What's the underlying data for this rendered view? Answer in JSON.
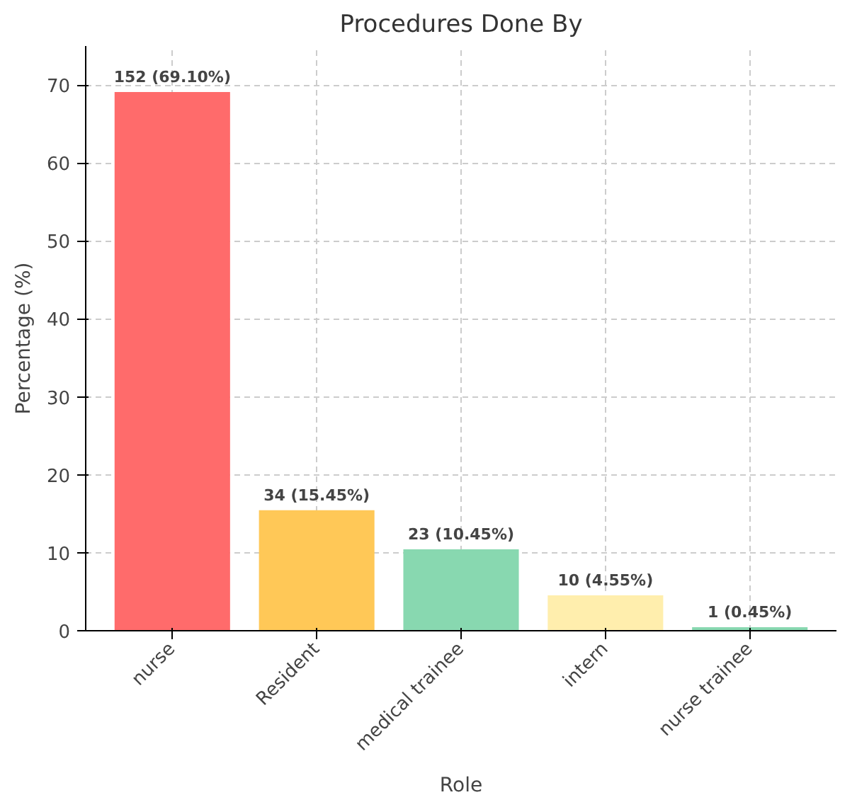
{
  "chart_data": {
    "type": "bar",
    "title": "Procedures Done By",
    "xlabel": "Role",
    "ylabel": "Percentage (%)",
    "categories": [
      "nurse",
      "Resident",
      "medical trainee",
      "intern",
      "nurse trainee"
    ],
    "values": [
      69.1,
      15.45,
      10.45,
      4.55,
      0.45
    ],
    "colors": [
      "#ff6b6b",
      "#ffc857",
      "#88d8b0",
      "#ffeead",
      "#88d8b0"
    ],
    "value_labels": [
      "152 (69.10%)",
      "34 (15.45%)",
      "23 (10.45%)",
      "10 (4.55%)",
      "1 (0.45%)"
    ],
    "ylim": [
      0,
      75
    ],
    "yticks": [
      0,
      10,
      20,
      30,
      40,
      50,
      60,
      70
    ],
    "grid": true
  }
}
